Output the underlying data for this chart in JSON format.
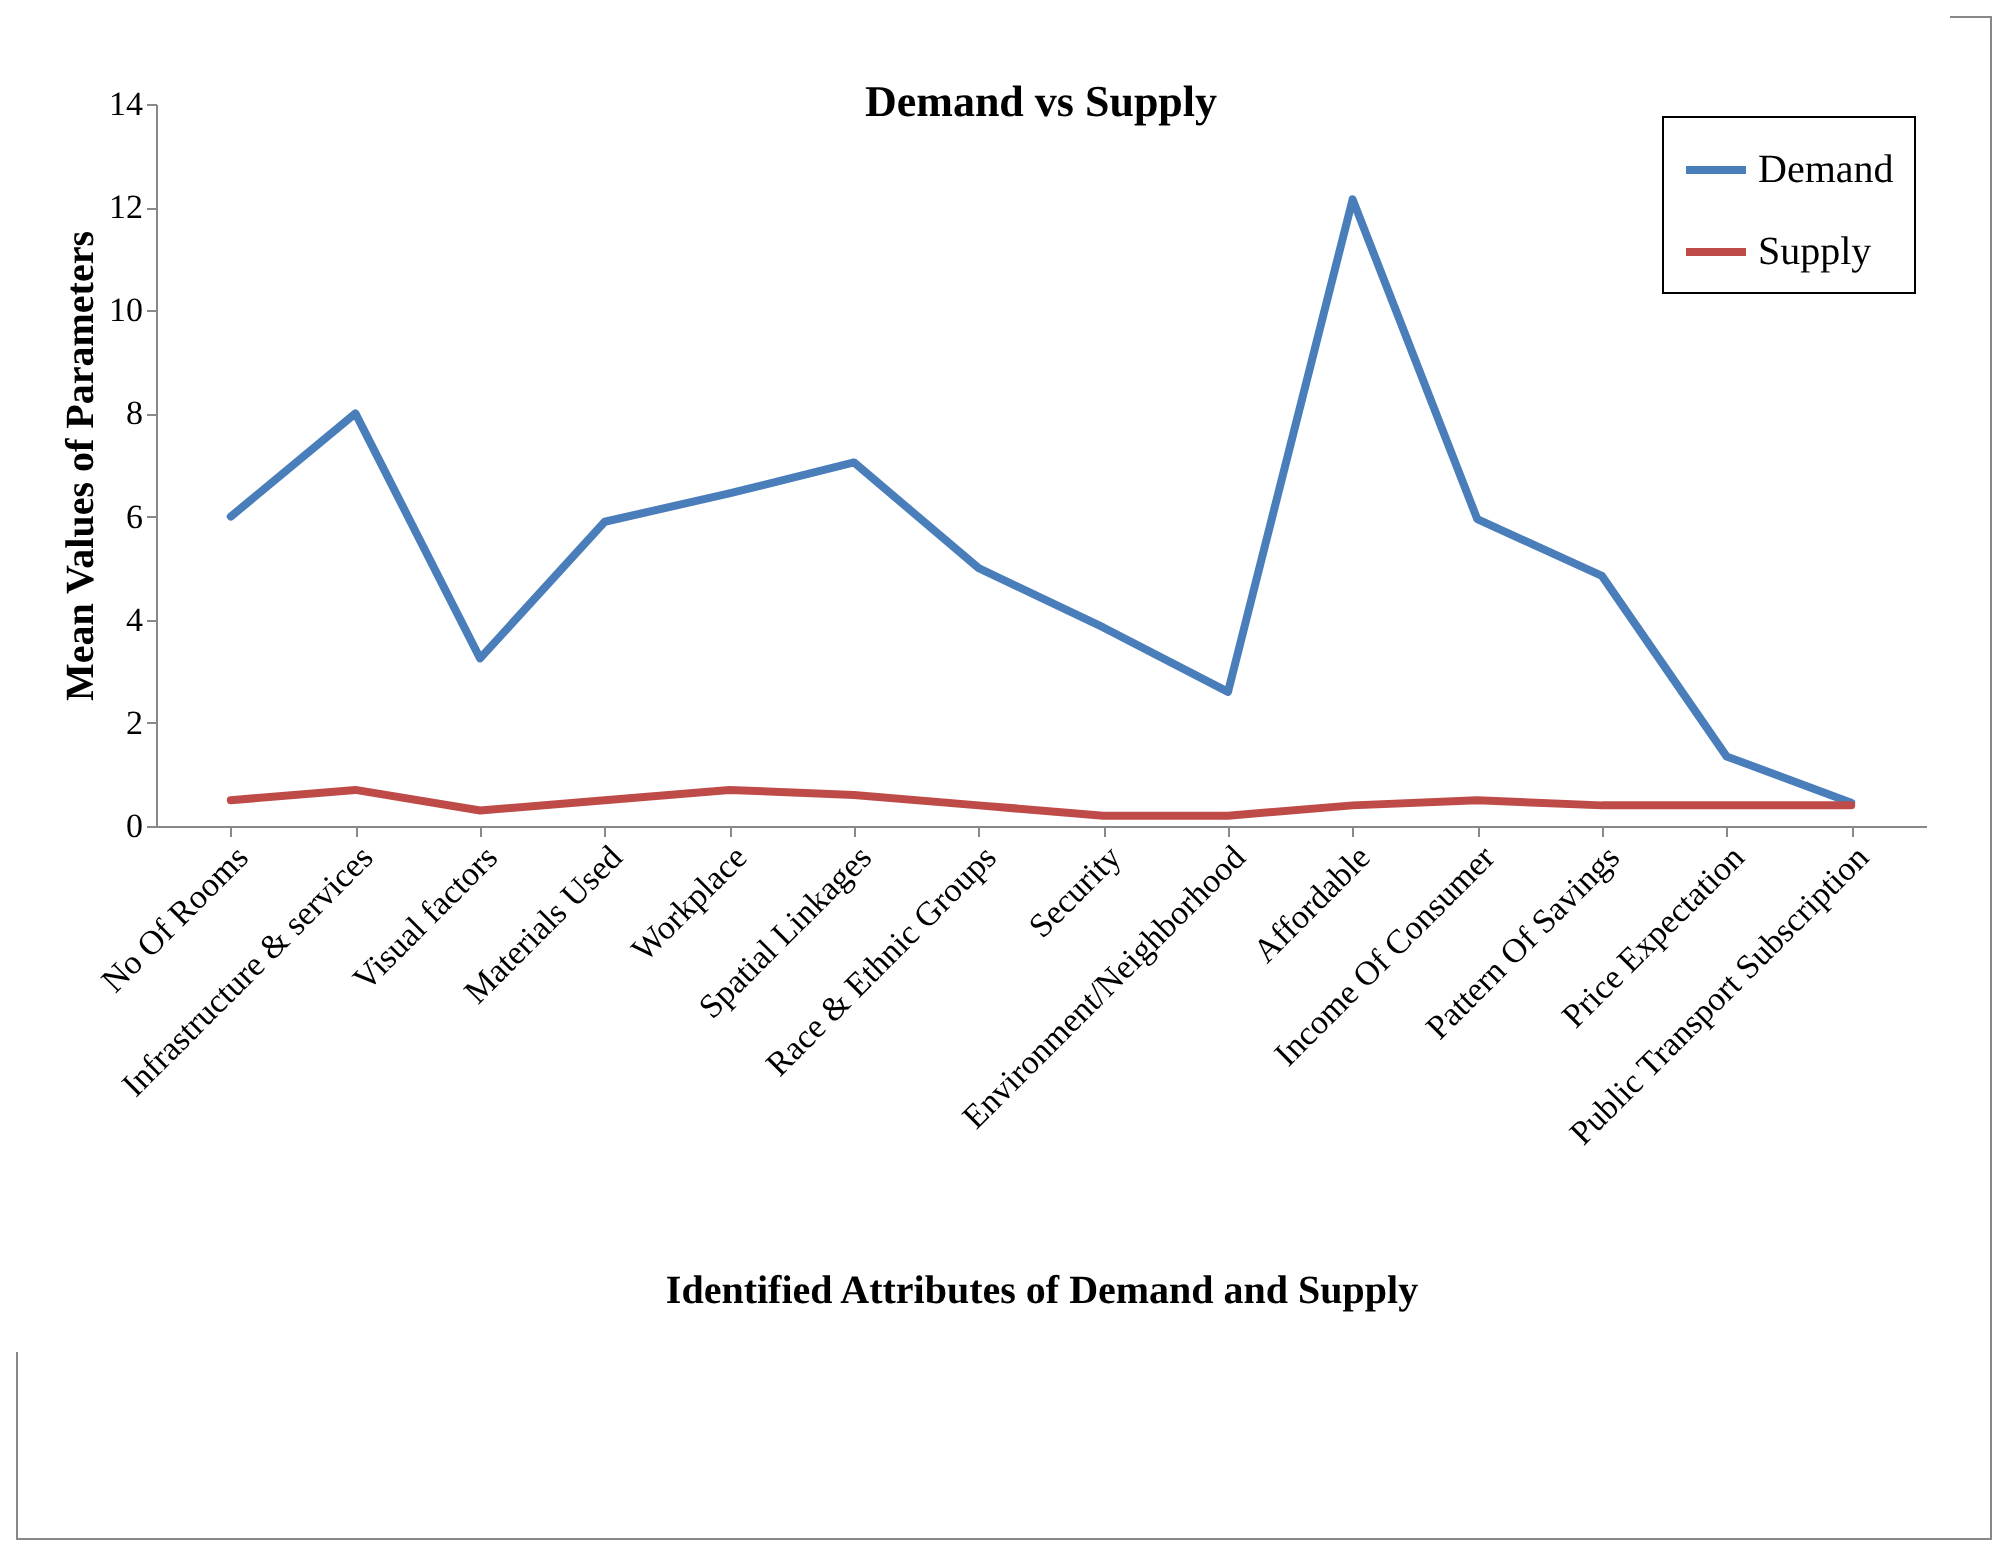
{
  "chart_data": {
    "type": "line",
    "title": "Demand vs Supply",
    "xlabel": "Identified Attributes of Demand and Supply",
    "ylabel": "Mean Values of  Parameters",
    "categories": [
      "No Of Rooms",
      "Infrastructure & services",
      "Visual factors",
      "Materials Used",
      "Workplace",
      "Spatial Linkages",
      "Race & Ethnic Groups",
      "Security",
      "Environment/Neighborhood",
      "Affordable",
      "Income Of Consumer",
      "Pattern Of Savings",
      "Price Expectation",
      "Public Transport Subscription"
    ],
    "series": [
      {
        "name": "Demand",
        "color": "#4a7ebb",
        "values": [
          6,
          8,
          3.25,
          5.9,
          6.45,
          7.05,
          5,
          3.85,
          2.6,
          12.15,
          5.95,
          4.85,
          1.35,
          0.45
        ]
      },
      {
        "name": "Supply",
        "color": "#be4b48",
        "values": [
          0.5,
          0.7,
          0.3,
          0.5,
          0.7,
          0.6,
          0.4,
          0.2,
          0.2,
          0.4,
          0.5,
          0.4,
          0.4,
          0.4
        ]
      }
    ],
    "ylim": [
      0,
      14
    ],
    "yticks": [
      0,
      2,
      4,
      6,
      8,
      10,
      12,
      14
    ],
    "grid": false,
    "legend": "top right",
    "marker": "none",
    "line_style": "solid"
  }
}
